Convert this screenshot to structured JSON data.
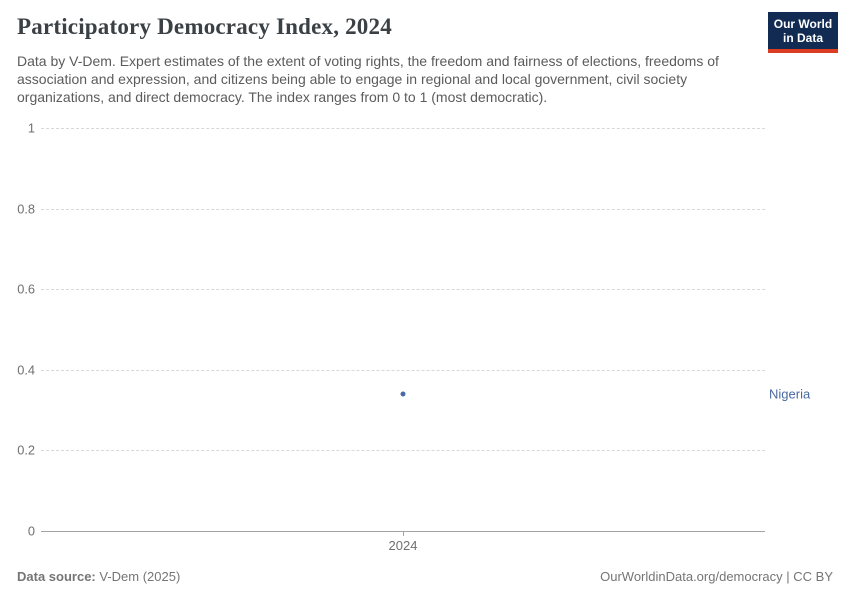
{
  "header": {
    "title": "Participatory Democracy Index, 2024",
    "subtitle": "Data by V-Dem. Expert estimates of the extent of voting rights, the freedom and fairness of elections, freedoms of association and expression, and citizens being able to engage in regional and local government, civil society organizations, and direct democracy. The index ranges from 0 to 1 (most democratic).",
    "logo": {
      "line1": "Our World",
      "line2": "in Data",
      "bg_color": "#122b52",
      "accent_color": "#dc3c22"
    }
  },
  "chart_data": {
    "type": "scatter",
    "title": "Participatory Democracy Index, 2024",
    "x": [
      2024
    ],
    "x_tick_labels": [
      "2024"
    ],
    "series": [
      {
        "name": "Nigeria",
        "values": [
          0.34
        ],
        "color": "#4a69a2"
      }
    ],
    "xlabel": "",
    "ylabel": "",
    "ylim": [
      0,
      1
    ],
    "yticks": [
      {
        "value": 1,
        "label": "1"
      },
      {
        "value": 0.8,
        "label": "0.8"
      },
      {
        "value": 0.6,
        "label": "0.6"
      },
      {
        "value": 0.4,
        "label": "0.4"
      },
      {
        "value": 0.2,
        "label": "0.2"
      },
      {
        "value": 0,
        "label": "0"
      }
    ],
    "grid": "horizontal-dashed",
    "legend_position": "entity label right of last point"
  },
  "footer": {
    "datasource_label": "Data source:",
    "datasource_value": "V-Dem (2025)",
    "attribution": "OurWorldinData.org/democracy | CC BY"
  },
  "colors": {
    "title_text": "#3b4045",
    "subtitle_text": "#5b5b5b",
    "axis_text": "#6f6f6f",
    "gridline": "#d8d8d8",
    "axis_line": "#a3a3a3",
    "footer_text": "#757575",
    "series_blue": "#4a69a2"
  }
}
